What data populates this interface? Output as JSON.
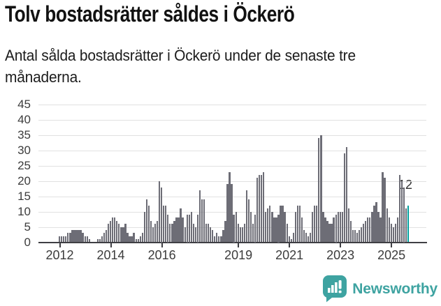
{
  "header": {
    "title": "Tolv bostadsrätter såldes i Öckerö",
    "subtitle": "Antal sålda bostadsrätter i Öckerö under de senaste tre månaderna."
  },
  "chart_data": {
    "type": "bar",
    "title": "Tolv bostadsrätter såldes i Öckerö",
    "xlabel": "",
    "ylabel": "",
    "ylim": [
      0,
      45
    ],
    "grid": true,
    "y_ticks": [
      0,
      5,
      10,
      15,
      20,
      25,
      30,
      35,
      40,
      45
    ],
    "x_ticks": [
      {
        "label": "2012",
        "month_index": 0
      },
      {
        "label": "2014",
        "month_index": 24
      },
      {
        "label": "2016",
        "month_index": 48
      },
      {
        "label": "2019",
        "month_index": 84
      },
      {
        "label": "2021",
        "month_index": 108
      },
      {
        "label": "2023",
        "month_index": 132
      },
      {
        "label": "2025",
        "month_index": 156
      }
    ],
    "start_month": "2012-01",
    "end_month": "2025-09",
    "unit": "sålda bostadsrätter (rullande tre månader)",
    "values": [
      2,
      2,
      2,
      2,
      3,
      3,
      4,
      4,
      4,
      4,
      4,
      3,
      2,
      2,
      1,
      0,
      0,
      0,
      1,
      1,
      2,
      3,
      4,
      6,
      7,
      8,
      8,
      7,
      6,
      5,
      5,
      6,
      3,
      2,
      2,
      3,
      1,
      1,
      2,
      3,
      10,
      14,
      12,
      7,
      5,
      6,
      7,
      20,
      18,
      12,
      12,
      9,
      6,
      6,
      7,
      8,
      8,
      11,
      8,
      5,
      9,
      9,
      10,
      6,
      5,
      9,
      17,
      14,
      14,
      6,
      6,
      5,
      4,
      2,
      3,
      2,
      2,
      4,
      7,
      19,
      23,
      19,
      9,
      10,
      6,
      5,
      5,
      6,
      17,
      14,
      10,
      6,
      9,
      21,
      22,
      22,
      23,
      10,
      11,
      12,
      10,
      8,
      8,
      9,
      12,
      12,
      10,
      6,
      2,
      1,
      3,
      10,
      12,
      12,
      8,
      4,
      3,
      2,
      3,
      10,
      12,
      12,
      34,
      35,
      10,
      8,
      7,
      6,
      6,
      8,
      9,
      10,
      10,
      10,
      29,
      31,
      11,
      7,
      4,
      4,
      3,
      4,
      5,
      6,
      7,
      8,
      8,
      10,
      12,
      13,
      10,
      8,
      23,
      21,
      11,
      8,
      6,
      5,
      6,
      8,
      22,
      20,
      18,
      11,
      12
    ],
    "highlight_last": true,
    "highlight_label": "12",
    "bar_color": "#6d6d76",
    "highlight_color": "#00a09e",
    "gridline_color": "#e1e1e1",
    "axis_color": "#3f3f44"
  },
  "footer": {
    "brand": "Newsworthy",
    "brand_color": "#3ea3a1"
  }
}
